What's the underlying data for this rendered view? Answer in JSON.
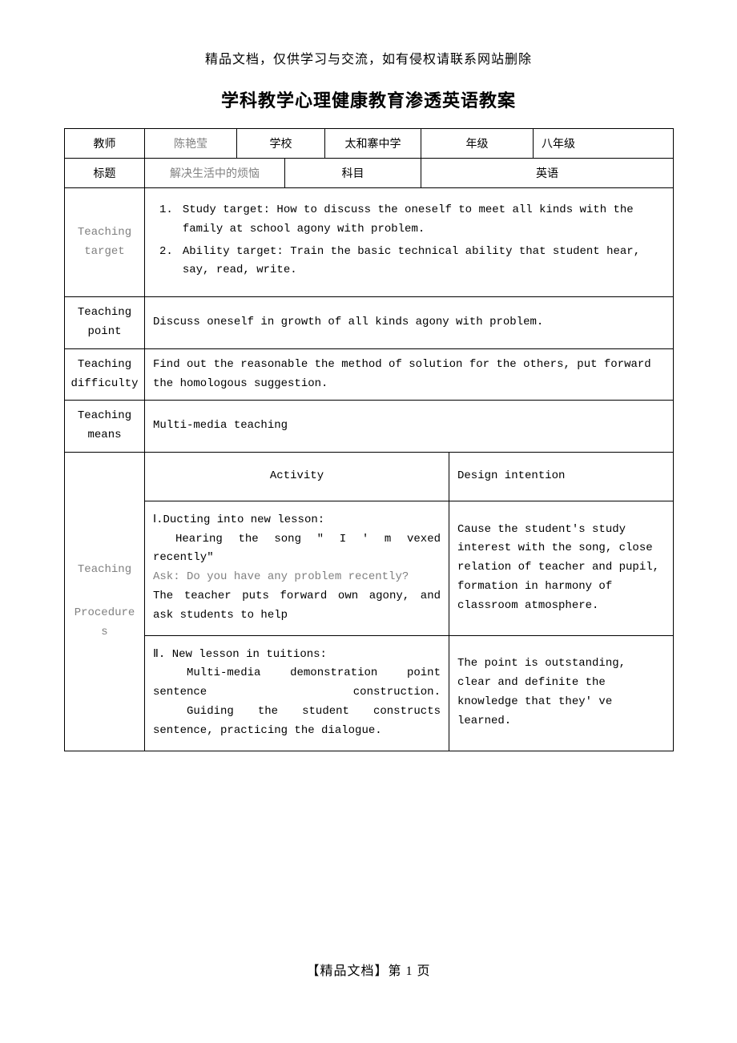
{
  "header_note": "精品文档，仅供学习与交流，如有侵权请联系网站删除",
  "main_title": "学科教学心理健康教育渗透英语教案",
  "row1": {
    "teacher_label": "教师",
    "teacher_value": "陈艳莹",
    "school_label": "学校",
    "school_value": "太和寨中学",
    "grade_label": "年级",
    "grade_value": "八年级"
  },
  "row2": {
    "title_label": "标题",
    "title_value": "解决生活中的烦恼",
    "subject_label": "科目",
    "subject_value": "英语"
  },
  "teaching_target": {
    "label": "Teaching target",
    "item1_num": "1.",
    "item1_text": "Study target: How to discuss the oneself to meet all kinds with the family at school agony with problem.",
    "item2_num": "2.",
    "item2_text": "Ability target: Train the basic technical ability that student hear, say, read, write."
  },
  "teaching_point": {
    "label": "Teaching point",
    "text": "Discuss oneself in growth of all kinds agony with problem."
  },
  "teaching_difficulty": {
    "label": "Teaching difficulty",
    "text": "Find out the reasonable the method of solution for the others, put forward the homologous suggestion."
  },
  "teaching_means": {
    "label": "Teaching means",
    "text": "Multi-media teaching"
  },
  "procedures": {
    "label": "Teaching Procedures",
    "activity_header": "Activity",
    "design_header": "Design intention",
    "section1": {
      "title": "Ⅰ.Ducting into new lesson:",
      "line1": "Hearing the song \" I ' m vexed recently\"",
      "line2": "Ask: Do you have any problem recently?",
      "line3": "The teacher puts forward own agony, and ask students to help",
      "design": "Cause the student's study interest with the song, close relation of teacher and pupil, formation in harmony of classroom atmosphere."
    },
    "section2": {
      "title": "Ⅱ. New lesson in tuitions:",
      "line1": "Multi-media demonstration point sentence construction.",
      "line2": "Guiding the student constructs sentence, practicing the dialogue.",
      "design": "The point is outstanding, clear and definite the knowledge that they' ve learned."
    }
  },
  "footer_note": "【精品文档】第 1 页"
}
